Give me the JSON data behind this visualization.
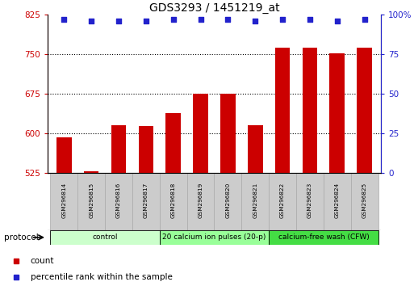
{
  "title": "GDS3293 / 1451219_at",
  "samples": [
    "GSM296814",
    "GSM296815",
    "GSM296816",
    "GSM296817",
    "GSM296818",
    "GSM296819",
    "GSM296820",
    "GSM296821",
    "GSM296822",
    "GSM296823",
    "GSM296824",
    "GSM296825"
  ],
  "counts": [
    592,
    528,
    615,
    614,
    638,
    675,
    675,
    615,
    762,
    762,
    752,
    762
  ],
  "percentile_ranks": [
    97,
    96,
    96,
    96,
    97,
    97,
    97,
    96,
    97,
    97,
    96,
    97
  ],
  "bar_color": "#cc0000",
  "dot_color": "#2222cc",
  "ylim_left": [
    525,
    825
  ],
  "ylim_right": [
    0,
    100
  ],
  "yticks_left": [
    525,
    600,
    675,
    750,
    825
  ],
  "yticks_right": [
    0,
    25,
    50,
    75,
    100
  ],
  "ytick_labels_left": [
    "525",
    "600",
    "675",
    "750",
    "825"
  ],
  "ytick_labels_right": [
    "0",
    "25",
    "50",
    "75",
    "100%"
  ],
  "grid_values": [
    600,
    675,
    750
  ],
  "protocol_groups": [
    {
      "label": "control",
      "start": 0,
      "end": 3
    },
    {
      "label": "20 calcium ion pulses (20-p)",
      "start": 4,
      "end": 7
    },
    {
      "label": "calcium-free wash (CFW)",
      "start": 8,
      "end": 11
    }
  ],
  "group_colors": [
    "#ccffcc",
    "#99ff99",
    "#44dd44"
  ],
  "legend_count_label": "count",
  "legend_pct_label": "percentile rank within the sample",
  "protocol_label": "protocol"
}
